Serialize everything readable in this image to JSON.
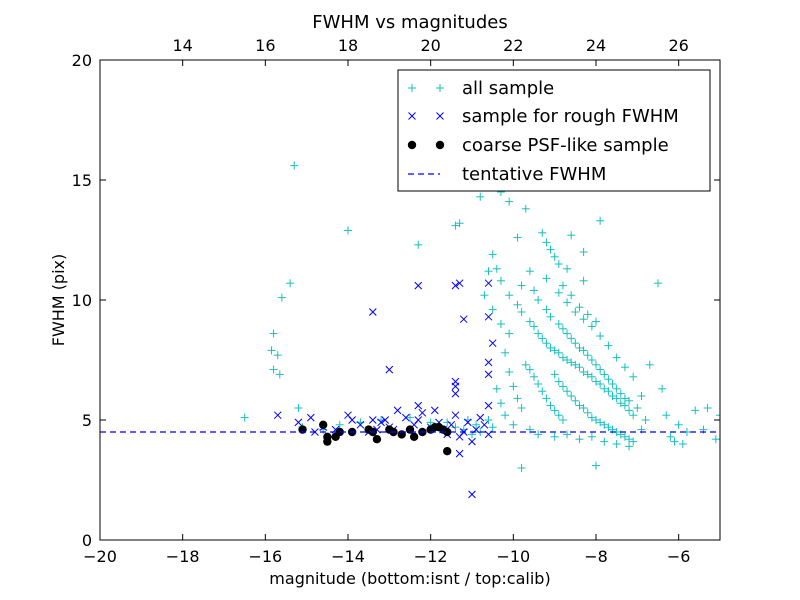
{
  "chart_data": {
    "type": "scatter",
    "title": "FWHM vs magnitudes",
    "xlabel": "magnitude (bottom:isnt / top:calib)",
    "ylabel": "FWHM (pix)",
    "xlim": [
      -20,
      -5
    ],
    "ylim": [
      0,
      20
    ],
    "x_ticks": [
      "−20",
      "−18",
      "−16",
      "−14",
      "−12",
      "−10",
      "−8",
      "−6"
    ],
    "y_ticks": [
      "0",
      "5",
      "10",
      "15",
      "20"
    ],
    "top_axis": {
      "ticks": [
        14,
        16,
        18,
        20,
        22,
        24,
        26
      ],
      "tick_labels": [
        "14",
        "16",
        "18",
        "20",
        "22",
        "24",
        "26"
      ],
      "top_minus_bottom": 32.0
    },
    "grid": false,
    "legend_placement": "top-right",
    "legend": [
      {
        "label": "all sample",
        "marker": "plus",
        "color": "#17bfbf"
      },
      {
        "label": "sample for rough FWHM",
        "marker": "x",
        "color": "#0000ff"
      },
      {
        "label": "coarse PSF-like sample",
        "marker": "dot",
        "color": "#000000"
      },
      {
        "label": "tentative FWHM",
        "marker": "dashed-line",
        "color": "#0000ff"
      }
    ],
    "tentative_fwhm": 4.5,
    "series": [
      {
        "name": "all sample",
        "marker": "plus",
        "color": "#17bfbf",
        "points": [
          [
            -15.3,
            15.6
          ],
          [
            -15.4,
            10.7
          ],
          [
            -15.6,
            10.1
          ],
          [
            -15.8,
            8.6
          ],
          [
            -15.7,
            7.7
          ],
          [
            -15.85,
            7.9
          ],
          [
            -15.8,
            7.1
          ],
          [
            -15.65,
            6.9
          ],
          [
            -15.2,
            5.5
          ],
          [
            -14.0,
            12.9
          ],
          [
            -12.3,
            12.3
          ],
          [
            -11.3,
            13.2
          ],
          [
            -11.4,
            13.1
          ],
          [
            -10.3,
            14.5
          ],
          [
            -10.8,
            14.3
          ],
          [
            -10.1,
            14.1
          ],
          [
            -9.7,
            13.8
          ],
          [
            -9.3,
            12.8
          ],
          [
            -9.2,
            12.4
          ],
          [
            -9.0,
            11.8
          ],
          [
            -8.6,
            12.7
          ],
          [
            -8.3,
            12.0
          ],
          [
            -7.9,
            13.3
          ],
          [
            -10.5,
            11.9
          ],
          [
            -10.4,
            11.3
          ],
          [
            -10.3,
            10.8
          ],
          [
            -10.1,
            10.2
          ],
          [
            -9.9,
            9.8
          ],
          [
            -9.8,
            9.5
          ],
          [
            -9.6,
            9.1
          ],
          [
            -9.5,
            8.9
          ],
          [
            -9.4,
            8.6
          ],
          [
            -9.3,
            8.4
          ],
          [
            -9.2,
            8.2
          ],
          [
            -9.1,
            8.0
          ],
          [
            -9.0,
            7.9
          ],
          [
            -8.9,
            7.8
          ],
          [
            -8.8,
            7.6
          ],
          [
            -8.7,
            7.5
          ],
          [
            -8.6,
            7.4
          ],
          [
            -8.5,
            7.3
          ],
          [
            -8.4,
            7.2
          ],
          [
            -8.3,
            7.0
          ],
          [
            -8.2,
            6.9
          ],
          [
            -8.1,
            6.8
          ],
          [
            -8.0,
            6.6
          ],
          [
            -7.9,
            6.5
          ],
          [
            -7.8,
            6.3
          ],
          [
            -7.7,
            6.2
          ],
          [
            -7.6,
            6.0
          ],
          [
            -7.5,
            5.9
          ],
          [
            -7.4,
            5.7
          ],
          [
            -7.3,
            5.6
          ],
          [
            -7.2,
            5.4
          ],
          [
            -7.1,
            5.2
          ],
          [
            -9.2,
            9.6
          ],
          [
            -9.1,
            9.3
          ],
          [
            -8.9,
            9.0
          ],
          [
            -8.8,
            8.8
          ],
          [
            -8.7,
            8.6
          ],
          [
            -8.6,
            8.4
          ],
          [
            -8.5,
            8.2
          ],
          [
            -8.4,
            8.0
          ],
          [
            -8.3,
            7.9
          ],
          [
            -8.2,
            7.7
          ],
          [
            -8.1,
            7.5
          ],
          [
            -8.0,
            7.3
          ],
          [
            -7.9,
            7.1
          ],
          [
            -7.8,
            6.9
          ],
          [
            -7.7,
            6.7
          ],
          [
            -7.6,
            6.5
          ],
          [
            -7.5,
            6.3
          ],
          [
            -7.4,
            6.1
          ],
          [
            -7.3,
            5.9
          ],
          [
            -7.2,
            5.8
          ],
          [
            -8.9,
            10.3
          ],
          [
            -8.7,
            9.9
          ],
          [
            -8.5,
            9.5
          ],
          [
            -8.3,
            9.2
          ],
          [
            -8.1,
            8.9
          ],
          [
            -7.9,
            8.5
          ],
          [
            -7.7,
            8.1
          ],
          [
            -7.5,
            7.6
          ],
          [
            -7.3,
            7.2
          ],
          [
            -7.1,
            6.8
          ],
          [
            -9.0,
            6.9
          ],
          [
            -8.9,
            6.6
          ],
          [
            -8.8,
            6.4
          ],
          [
            -8.7,
            6.2
          ],
          [
            -8.6,
            6.0
          ],
          [
            -8.5,
            5.8
          ],
          [
            -8.4,
            5.6
          ],
          [
            -8.3,
            5.5
          ],
          [
            -8.2,
            5.3
          ],
          [
            -8.1,
            5.1
          ],
          [
            -8.0,
            5.0
          ],
          [
            -7.9,
            4.9
          ],
          [
            -7.8,
            4.8
          ],
          [
            -7.7,
            4.7
          ],
          [
            -7.6,
            4.6
          ],
          [
            -7.5,
            4.5
          ],
          [
            -7.4,
            4.4
          ],
          [
            -7.3,
            4.3
          ],
          [
            -7.2,
            4.2
          ],
          [
            -7.1,
            4.1
          ],
          [
            -9.7,
            7.3
          ],
          [
            -9.6,
            7.1
          ],
          [
            -9.5,
            6.8
          ],
          [
            -9.4,
            6.5
          ],
          [
            -9.3,
            6.2
          ],
          [
            -9.2,
            5.9
          ],
          [
            -9.1,
            5.6
          ],
          [
            -9.0,
            5.4
          ],
          [
            -8.9,
            5.2
          ],
          [
            -8.8,
            5.0
          ],
          [
            -10.2,
            7.8
          ],
          [
            -10.1,
            7.0
          ],
          [
            -10.0,
            6.4
          ],
          [
            -9.9,
            5.9
          ],
          [
            -9.8,
            5.5
          ],
          [
            -10.4,
            6.3
          ],
          [
            -10.3,
            5.7
          ],
          [
            -10.2,
            5.2
          ],
          [
            -10.6,
            5.0
          ],
          [
            -10.5,
            4.7
          ],
          [
            -10.0,
            4.8
          ],
          [
            -9.6,
            4.6
          ],
          [
            -9.4,
            4.4
          ],
          [
            -9.0,
            4.3
          ],
          [
            -8.7,
            4.4
          ],
          [
            -8.4,
            4.2
          ],
          [
            -8.1,
            4.3
          ],
          [
            -7.8,
            4.1
          ],
          [
            -7.5,
            4.0
          ],
          [
            -7.2,
            3.9
          ],
          [
            -6.9,
            4.6
          ],
          [
            -6.8,
            5.0
          ],
          [
            -7.0,
            5.5
          ],
          [
            -6.9,
            6.0
          ],
          [
            -6.7,
            7.3
          ],
          [
            -6.5,
            10.7
          ],
          [
            -6.4,
            6.3
          ],
          [
            -6.3,
            5.2
          ],
          [
            -6.2,
            4.3
          ],
          [
            -6.0,
            4.8
          ],
          [
            -5.8,
            4.5
          ],
          [
            -5.6,
            5.4
          ],
          [
            -5.4,
            4.6
          ],
          [
            -5.3,
            5.5
          ],
          [
            -5.1,
            4.2
          ],
          [
            -5.0,
            5.2
          ],
          [
            -6.1,
            4.1
          ],
          [
            -5.9,
            4.0
          ],
          [
            -9.8,
            3.0
          ],
          [
            -8.0,
            3.1
          ],
          [
            -10.6,
            11.2
          ],
          [
            -10.7,
            10.2
          ],
          [
            -10.5,
            9.6
          ],
          [
            -10.3,
            9.0
          ],
          [
            -10.1,
            8.6
          ],
          [
            -9.5,
            10.4
          ],
          [
            -9.4,
            10.0
          ],
          [
            -9.6,
            11.2
          ],
          [
            -9.8,
            10.6
          ],
          [
            -9.2,
            10.9
          ],
          [
            -8.8,
            10.6
          ],
          [
            -8.6,
            10.2
          ],
          [
            -8.4,
            9.7
          ],
          [
            -8.2,
            9.4
          ],
          [
            -8.0,
            9.1
          ],
          [
            -11.6,
            4.9
          ],
          [
            -11.4,
            4.7
          ],
          [
            -11.2,
            4.6
          ],
          [
            -11.0,
            4.4
          ],
          [
            -10.8,
            4.5
          ],
          [
            -10.9,
            4.8
          ],
          [
            -11.1,
            5.0
          ],
          [
            -12.0,
            4.9
          ],
          [
            -12.5,
            5.1
          ],
          [
            -13.2,
            5.0
          ],
          [
            -13.7,
            4.9
          ],
          [
            -14.2,
            4.8
          ],
          [
            -14.6,
            4.6
          ],
          [
            -15.1,
            4.7
          ],
          [
            -16.5,
            5.1
          ],
          [
            -8.7,
            11.3
          ],
          [
            -8.3,
            10.8
          ],
          [
            -9.1,
            12.1
          ],
          [
            -8.9,
            11.5
          ],
          [
            -9.9,
            12.6
          ]
        ]
      },
      {
        "name": "sample for rough FWHM",
        "marker": "x",
        "color": "#0000ff",
        "points": [
          [
            -15.7,
            5.2
          ],
          [
            -15.2,
            4.9
          ],
          [
            -14.9,
            5.1
          ],
          [
            -14.6,
            4.7
          ],
          [
            -14.3,
            4.6
          ],
          [
            -14.0,
            5.2
          ],
          [
            -13.9,
            5.0
          ],
          [
            -13.7,
            4.8
          ],
          [
            -13.4,
            5.0
          ],
          [
            -13.3,
            4.6
          ],
          [
            -13.2,
            4.9
          ],
          [
            -13.1,
            5.0
          ],
          [
            -13.0,
            4.7
          ],
          [
            -12.8,
            5.4
          ],
          [
            -12.6,
            5.1
          ],
          [
            -12.4,
            4.8
          ],
          [
            -12.3,
            5.0
          ],
          [
            -12.2,
            5.3
          ],
          [
            -12.0,
            4.7
          ],
          [
            -11.9,
            5.4
          ],
          [
            -11.8,
            4.9
          ],
          [
            -11.7,
            4.6
          ],
          [
            -11.6,
            4.4
          ],
          [
            -11.5,
            4.8
          ],
          [
            -11.4,
            5.2
          ],
          [
            -11.3,
            4.3
          ],
          [
            -11.2,
            4.5
          ],
          [
            -11.1,
            4.9
          ],
          [
            -11.0,
            4.1
          ],
          [
            -10.9,
            4.6
          ],
          [
            -10.8,
            5.1
          ],
          [
            -10.7,
            4.8
          ],
          [
            -10.6,
            4.4
          ],
          [
            -13.4,
            9.5
          ],
          [
            -13.0,
            7.1
          ],
          [
            -12.3,
            10.6
          ],
          [
            -11.4,
            10.6
          ],
          [
            -11.3,
            10.7
          ],
          [
            -11.2,
            9.2
          ],
          [
            -10.6,
            10.7
          ],
          [
            -10.6,
            9.3
          ],
          [
            -10.5,
            8.2
          ],
          [
            -11.4,
            6.6
          ],
          [
            -11.4,
            6.4
          ],
          [
            -11.4,
            6.1
          ],
          [
            -10.6,
            7.4
          ],
          [
            -10.6,
            6.9
          ],
          [
            -10.6,
            5.6
          ],
          [
            -11.3,
            3.6
          ],
          [
            -11.0,
            1.9
          ],
          [
            -12.3,
            5.6
          ],
          [
            -13.5,
            4.5
          ],
          [
            -12.9,
            4.6
          ],
          [
            -14.8,
            4.5
          ]
        ]
      },
      {
        "name": "coarse PSF-like sample",
        "marker": "dot",
        "color": "#000000",
        "points": [
          [
            -15.1,
            4.6
          ],
          [
            -14.6,
            4.8
          ],
          [
            -14.5,
            4.3
          ],
          [
            -14.5,
            4.1
          ],
          [
            -14.3,
            4.3
          ],
          [
            -14.2,
            4.5
          ],
          [
            -13.9,
            4.5
          ],
          [
            -13.5,
            4.6
          ],
          [
            -13.4,
            4.5
          ],
          [
            -13.3,
            4.2
          ],
          [
            -13.0,
            4.6
          ],
          [
            -12.9,
            4.5
          ],
          [
            -12.7,
            4.4
          ],
          [
            -12.5,
            4.6
          ],
          [
            -12.4,
            4.3
          ],
          [
            -12.2,
            4.5
          ],
          [
            -12.0,
            4.6
          ],
          [
            -11.9,
            4.7
          ],
          [
            -11.8,
            4.7
          ],
          [
            -11.7,
            4.6
          ],
          [
            -11.6,
            4.5
          ],
          [
            -11.6,
            3.7
          ]
        ]
      }
    ]
  }
}
